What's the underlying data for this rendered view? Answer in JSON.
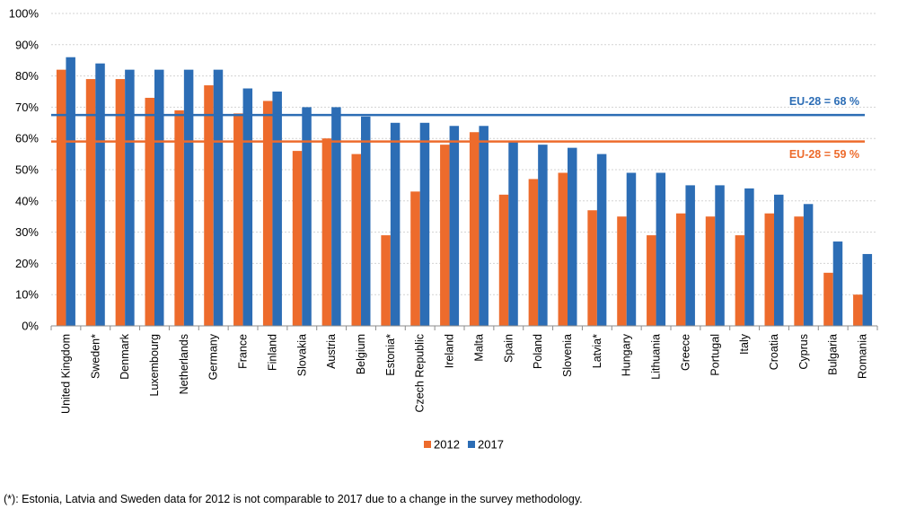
{
  "chart_data": {
    "type": "bar",
    "categories": [
      "United Kingdom",
      "Sweden*",
      "Denmark",
      "Luxembourg",
      "Netherlands",
      "Germany",
      "France",
      "Finland",
      "Slovakia",
      "Austria",
      "Belgium",
      "Estonia*",
      "Czech Republic",
      "Ireland",
      "Malta",
      "Spain",
      "Poland",
      "Slovenia",
      "Latvia*",
      "Hungary",
      "Lithuania",
      "Greece",
      "Portugal",
      "Italy",
      "Croatia",
      "Cyprus",
      "Bulgaria",
      "Romania"
    ],
    "series": [
      {
        "name": "2012",
        "color": "#ED6B2C",
        "values": [
          82,
          79,
          79,
          73,
          69,
          77,
          68,
          72,
          56,
          60,
          55,
          29,
          43,
          58,
          62,
          42,
          47,
          49,
          37,
          35,
          29,
          36,
          35,
          29,
          36,
          35,
          17,
          10
        ]
      },
      {
        "name": "2017",
        "color": "#2C6DB5",
        "values": [
          86,
          84,
          82,
          82,
          82,
          82,
          76,
          75,
          70,
          70,
          67,
          65,
          65,
          64,
          64,
          59,
          58,
          57,
          55,
          49,
          49,
          45,
          45,
          44,
          42,
          39,
          27,
          23
        ]
      }
    ],
    "reference_lines": [
      {
        "label": "EU-28 = 68 %",
        "value": 67.5,
        "color": "#2C6DB5"
      },
      {
        "label": "EU-28 = 59 %",
        "value": 59,
        "color": "#ED6B2C"
      }
    ],
    "ylim": [
      0,
      100
    ],
    "yticks": [
      "0%",
      "10%",
      "20%",
      "30%",
      "40%",
      "50%",
      "60%",
      "70%",
      "80%",
      "90%",
      "100%"
    ],
    "grid": true,
    "legend_position": "bottom"
  },
  "footnote": "(*): Estonia, Latvia and Sweden data for 2012 is not comparable to 2017 due to a change in the survey methodology."
}
